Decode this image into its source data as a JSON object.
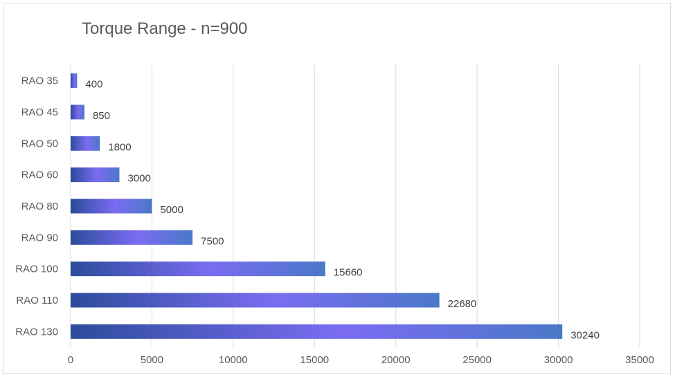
{
  "chart_data": {
    "type": "bar",
    "orientation": "horizontal",
    "title": "Torque Range - n=900",
    "xlabel": "",
    "ylabel": "",
    "categories": [
      "RAO 35",
      "RAO 45",
      "RAO 50",
      "RAO 60",
      "RAO 80",
      "RAO 90",
      "RAO 100",
      "RAO 110",
      "RAO 130"
    ],
    "values": [
      400,
      850,
      1800,
      3000,
      5000,
      7500,
      15660,
      22680,
      30240
    ],
    "data_labels": [
      "400",
      "850",
      "1800",
      "3000",
      "5000",
      "7500",
      "15660",
      "22680",
      "30240"
    ],
    "xlim": [
      0,
      35000
    ],
    "x_ticks": [
      0,
      5000,
      10000,
      15000,
      20000,
      25000,
      30000,
      35000
    ],
    "x_tick_labels": [
      "0",
      "5000",
      "10000",
      "15000",
      "20000",
      "25000",
      "30000",
      "35000"
    ],
    "grid": "vertical",
    "legend": "none",
    "colors": {
      "bar_dark": "#2b4c9b",
      "bar_light": "#7b6cf2",
      "bar_end": "#4a78c8",
      "grid": "#d9d9d9",
      "text": "#595959"
    }
  }
}
